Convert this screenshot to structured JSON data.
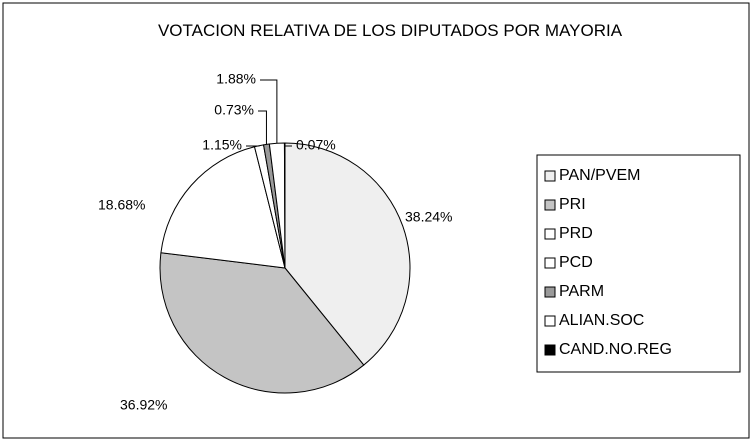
{
  "chart_data": {
    "type": "pie",
    "title": "VOTACION RELATIVA DE LOS DIPUTADOS POR MAYORIA",
    "categories": [
      "PAN/PVEM",
      "PRI",
      "PRD",
      "PCD",
      "PARM",
      "ALIAN.SOC",
      "CAND.NO.REG"
    ],
    "values": [
      38.24,
      36.92,
      18.68,
      1.15,
      0.73,
      1.88,
      0.07
    ],
    "value_labels": [
      "38.24%",
      "36.92%",
      "18.68%",
      "1.15%",
      "0.73%",
      "1.88%",
      "0.07%"
    ],
    "colors": [
      "#efefef",
      "#c4c4c4",
      "#ffffff",
      "#ffffff",
      "#9a9a9a",
      "#ffffff",
      "#000000"
    ],
    "legend": "right"
  }
}
